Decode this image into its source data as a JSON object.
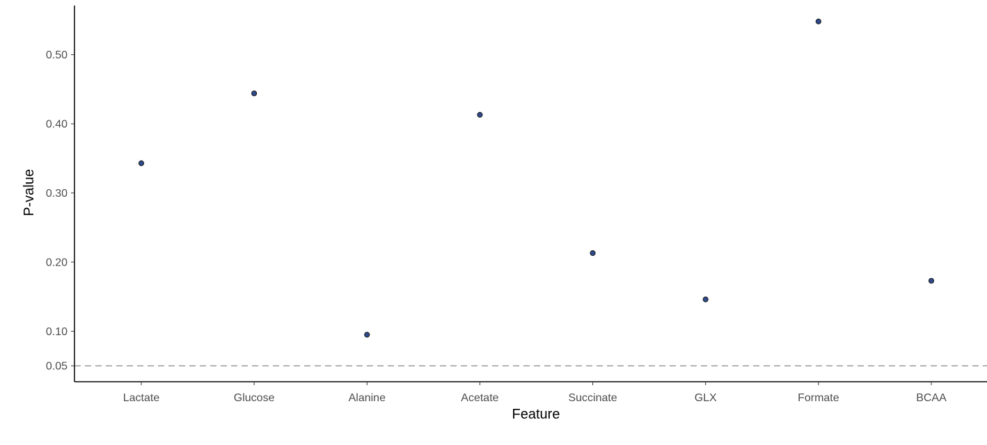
{
  "chart_data": {
    "type": "scatter",
    "title": "",
    "xlabel": "Feature",
    "ylabel": "P-value",
    "categories": [
      "Lactate",
      "Glucose",
      "Alanine",
      "Acetate",
      "Succinate",
      "GLX",
      "Formate",
      "BCAA"
    ],
    "values": [
      0.343,
      0.444,
      0.095,
      0.413,
      0.213,
      0.146,
      0.548,
      0.173
    ],
    "ylim": [
      0.027,
      0.571
    ],
    "yticks": [
      0.05,
      0.1,
      0.2,
      0.3,
      0.4,
      0.5
    ],
    "ytick_labels": [
      "0.05",
      "0.10",
      "0.20",
      "0.30",
      "0.40",
      "0.50"
    ],
    "reference_line": {
      "y": 0.05,
      "style": "dashed"
    },
    "grid": false,
    "legend": "none",
    "colors": {
      "point_fill": "#2e4a8b",
      "point_stroke": "#1a1a1a",
      "axis": "#000000",
      "reference_line": "#999999"
    }
  }
}
